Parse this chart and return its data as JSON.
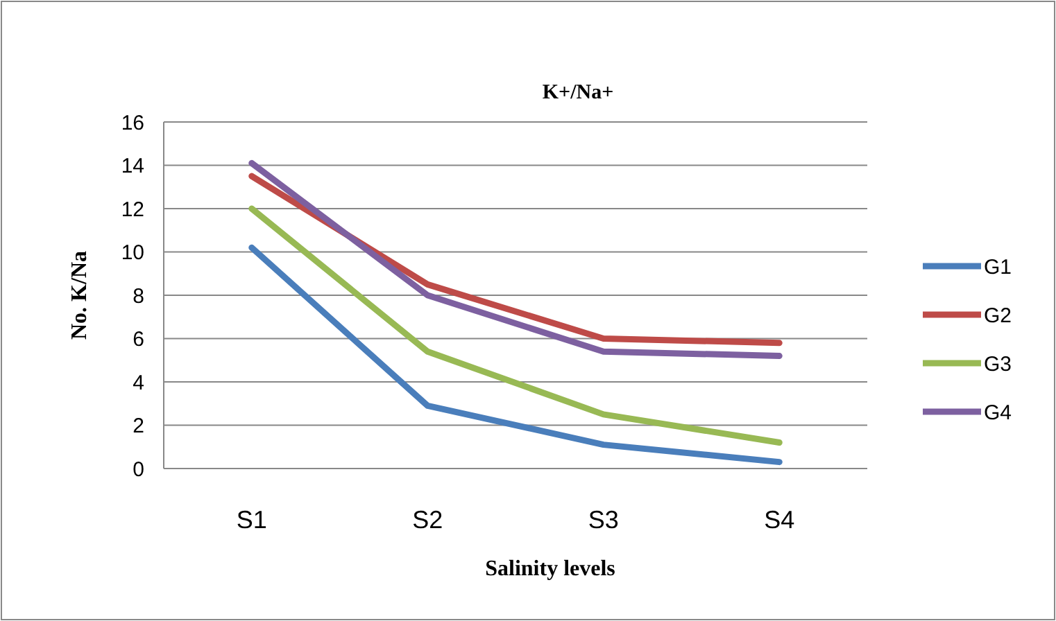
{
  "chart_data": {
    "type": "line",
    "title": "K+/Na+",
    "xlabel": "Salinity levels",
    "ylabel": "No. K/Na",
    "categories": [
      "S1",
      "S2",
      "S3",
      "S4"
    ],
    "series": [
      {
        "name": "G1",
        "color": "#4a7ebb",
        "values": [
          10.2,
          2.9,
          1.1,
          0.3
        ]
      },
      {
        "name": "G2",
        "color": "#be4b48",
        "values": [
          13.5,
          8.5,
          6.0,
          5.8
        ]
      },
      {
        "name": "G3",
        "color": "#98b954",
        "values": [
          12.0,
          5.4,
          2.5,
          1.2
        ]
      },
      {
        "name": "G4",
        "color": "#7d60a0",
        "values": [
          14.1,
          8.0,
          5.4,
          5.2
        ]
      }
    ],
    "ylim": [
      0,
      16
    ],
    "yticks": [
      0,
      2,
      4,
      6,
      8,
      10,
      12,
      14,
      16
    ],
    "grid": "y",
    "legend": "right",
    "marker": "none",
    "line_style": "solid"
  }
}
